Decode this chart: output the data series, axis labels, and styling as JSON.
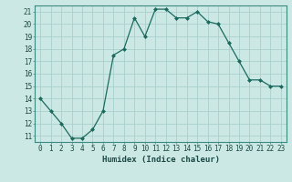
{
  "x": [
    0,
    1,
    2,
    3,
    4,
    5,
    6,
    7,
    8,
    9,
    10,
    11,
    12,
    13,
    14,
    15,
    16,
    17,
    18,
    19,
    20,
    21,
    22,
    23
  ],
  "y": [
    14,
    13,
    12,
    10.8,
    10.8,
    11.5,
    13,
    17.5,
    18,
    20.5,
    19,
    21.2,
    21.2,
    20.5,
    20.5,
    21,
    20.2,
    20,
    18.5,
    17,
    15.5,
    15.5,
    15,
    15
  ],
  "line_color": "#1a6b5e",
  "marker": "D",
  "marker_size": 2.0,
  "bg_color": "#cce8e5",
  "grid_color": "#aacfcc",
  "xlabel": "Humidex (Indice chaleur)",
  "xlim": [
    -0.5,
    23.5
  ],
  "ylim": [
    10.5,
    21.5
  ],
  "yticks": [
    11,
    12,
    13,
    14,
    15,
    16,
    17,
    18,
    19,
    20,
    21
  ],
  "xticks": [
    0,
    1,
    2,
    3,
    4,
    5,
    6,
    7,
    8,
    9,
    10,
    11,
    12,
    13,
    14,
    15,
    16,
    17,
    18,
    19,
    20,
    21,
    22,
    23
  ],
  "xlabel_fontsize": 6.5,
  "tick_fontsize": 5.5,
  "line_width": 0.9
}
